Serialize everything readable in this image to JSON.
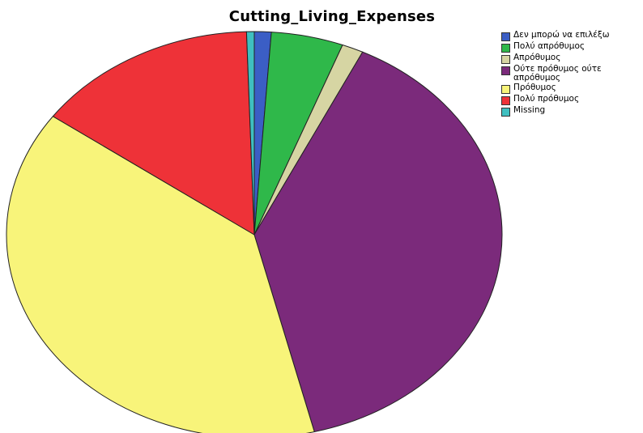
{
  "chart_data": {
    "type": "pie",
    "title": "Cutting_Living_Expenses",
    "legend_position": "top-right",
    "slices": [
      {
        "label": "Δεν μπορώ να επιλέξω",
        "value": 1.1,
        "color": "#3b5ec5"
      },
      {
        "label": "Πολύ απρόθυμος",
        "value": 4.7,
        "color": "#2fb84a"
      },
      {
        "label": "Απρόθυμος",
        "value": 1.4,
        "color": "#d6d5a3"
      },
      {
        "label": "Ούτε πρόθυμος ούτε απρόθυμος",
        "value": 38.9,
        "color": "#7b2a7b"
      },
      {
        "label": "Πρόθυμος",
        "value": 38.8,
        "color": "#f8f47a"
      },
      {
        "label": "Πολύ πρόθυμος",
        "value": 14.6,
        "color": "#ee3238"
      },
      {
        "label": "Missing",
        "value": 0.5,
        "color": "#3fbfc0"
      }
    ]
  }
}
